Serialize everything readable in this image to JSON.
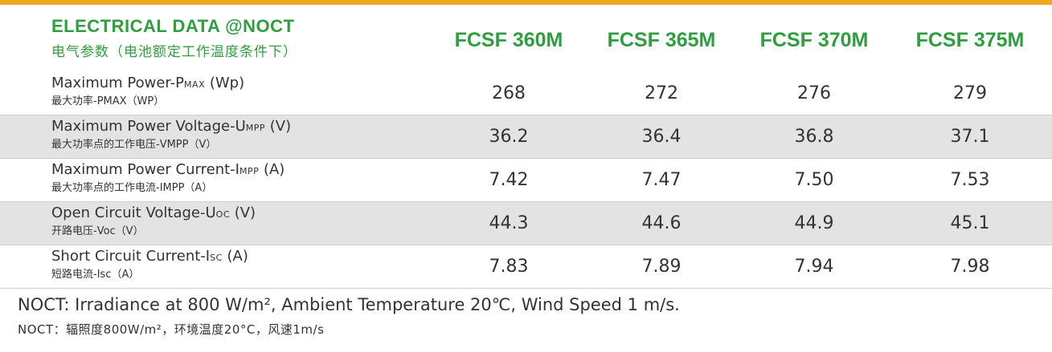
{
  "header": {
    "title_en": "ELECTRICAL DATA @NOCT",
    "title_cn": "电气参数（电池额定工作温度条件下）",
    "models": [
      "FCSF 360M",
      "FCSF 365M",
      "FCSF 370M",
      "FCSF 375M"
    ]
  },
  "rows": [
    {
      "en": "Maximum Power-P",
      "en_sub": "MAX",
      "en_unit": " (Wp)",
      "cn": "最大功率-PMAX（WP）",
      "values": [
        "268",
        "272",
        "276",
        "279"
      ]
    },
    {
      "en": "Maximum Power Voltage-U",
      "en_sub": "MPP",
      "en_unit": " (V)",
      "cn": "最大功率点的工作电压-VMPP（V）",
      "values": [
        "36.2",
        "36.4",
        "36.8",
        "37.1"
      ]
    },
    {
      "en": "Maximum Power Current-I",
      "en_sub": "MPP",
      "en_unit": " (A)",
      "cn": "最大功率点的工作电流-IMPP（A）",
      "values": [
        "7.42",
        "7.47",
        "7.50",
        "7.53"
      ]
    },
    {
      "en": "Open Circuit Voltage-U",
      "en_sub": "OC",
      "en_unit": " (V)",
      "cn": "开路电压-Voc（V）",
      "values": [
        "44.3",
        "44.6",
        "44.9",
        "45.1"
      ]
    },
    {
      "en": "Short Circuit Current-I",
      "en_sub": "SC",
      "en_unit": " (A)",
      "cn": "短路电流-Isc（A）",
      "values": [
        "7.83",
        "7.89",
        "7.94",
        "7.98"
      ]
    }
  ],
  "notes": {
    "en": "NOCT: Irradiance at 800 W/m², Ambient Temperature 20℃, Wind Speed 1 m/s.",
    "cn": "NOCT：辐照度800W/m²，环境温度20°C，风速1m/s"
  },
  "colors": {
    "accent_bar": "#f2a81d",
    "brand_green": "#2f9e3f",
    "row_shade": "#e3e3e4"
  }
}
